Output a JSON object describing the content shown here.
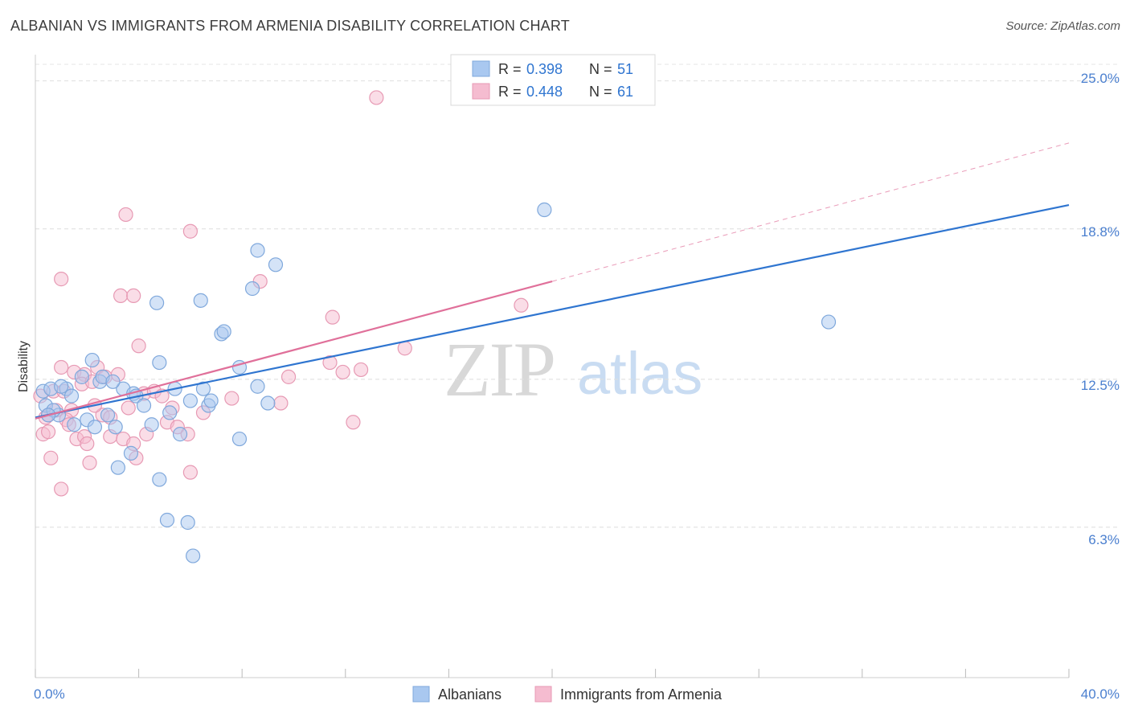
{
  "header": {
    "title": "ALBANIAN VS IMMIGRANTS FROM ARMENIA DISABILITY CORRELATION CHART",
    "source": "Source: ZipAtlas.com"
  },
  "watermark": {
    "zip": "ZIP",
    "atlas": "atlas"
  },
  "colors": {
    "blue_fill": "#a9c8f0",
    "blue_stroke": "#7fa8dc",
    "blue_line": "#2f75d0",
    "pink_fill": "#f5bcd0",
    "pink_stroke": "#e79ab4",
    "pink_line": "#e0709a",
    "axis_text": "#4a7fcf"
  },
  "legend": {
    "rows": [
      {
        "r_label": "R = ",
        "r_value": "0.398",
        "n_label": "N = ",
        "n_value": "51"
      },
      {
        "r_label": "R = ",
        "r_value": "0.448",
        "n_label": "N = ",
        "n_value": "61"
      }
    ]
  },
  "bottom_legend": {
    "items": [
      "Albanians",
      "Immigrants from Armenia"
    ]
  },
  "chart_data": {
    "type": "scatter",
    "title": "ALBANIAN VS IMMIGRANTS FROM ARMENIA DISABILITY CORRELATION CHART",
    "xlabel": "",
    "ylabel": "Disability",
    "xlim": [
      0,
      40
    ],
    "ylim": [
      0,
      26.1
    ],
    "x_tick_labels": [
      "0.0%",
      "40.0%"
    ],
    "y_ticks": [
      6.3,
      12.5,
      18.8,
      25.0
    ],
    "y_tick_labels": [
      "6.3%",
      "12.5%",
      "18.8%",
      "25.0%"
    ],
    "grid": true,
    "series": [
      {
        "name": "Albanians",
        "r": 0.398,
        "n": 51,
        "trend": {
          "x0": 0,
          "y0": 10.9,
          "x1": 40,
          "y1": 19.8
        },
        "points": [
          [
            0.3,
            12.0
          ],
          [
            0.6,
            12.1
          ],
          [
            0.4,
            11.4
          ],
          [
            0.9,
            11.0
          ],
          [
            1.2,
            12.1
          ],
          [
            1.4,
            11.8
          ],
          [
            1.0,
            12.2
          ],
          [
            0.7,
            11.2
          ],
          [
            1.8,
            12.6
          ],
          [
            2.2,
            13.3
          ],
          [
            2.5,
            12.4
          ],
          [
            2.6,
            12.6
          ],
          [
            2.0,
            10.8
          ],
          [
            2.8,
            11.0
          ],
          [
            3.1,
            10.5
          ],
          [
            3.4,
            12.1
          ],
          [
            3.8,
            11.9
          ],
          [
            3.2,
            8.8
          ],
          [
            3.7,
            9.4
          ],
          [
            3.9,
            11.8
          ],
          [
            4.2,
            11.4
          ],
          [
            4.5,
            10.6
          ],
          [
            4.8,
            13.2
          ],
          [
            4.7,
            15.7
          ],
          [
            5.2,
            11.1
          ],
          [
            4.8,
            8.3
          ],
          [
            5.4,
            12.1
          ],
          [
            5.6,
            10.2
          ],
          [
            5.1,
            6.6
          ],
          [
            6.0,
            11.6
          ],
          [
            5.9,
            6.5
          ],
          [
            6.4,
            15.8
          ],
          [
            6.1,
            5.1
          ],
          [
            6.7,
            11.4
          ],
          [
            6.8,
            11.6
          ],
          [
            6.5,
            12.1
          ],
          [
            7.2,
            14.4
          ],
          [
            7.3,
            14.5
          ],
          [
            7.9,
            13.0
          ],
          [
            8.6,
            17.9
          ],
          [
            7.9,
            10.0
          ],
          [
            8.4,
            16.3
          ],
          [
            8.6,
            12.2
          ],
          [
            9.3,
            17.3
          ],
          [
            9.0,
            11.5
          ],
          [
            19.7,
            19.6
          ],
          [
            30.7,
            14.9
          ],
          [
            2.3,
            10.5
          ],
          [
            1.5,
            10.6
          ],
          [
            0.5,
            11.0
          ],
          [
            3.0,
            12.4
          ]
        ]
      },
      {
        "name": "Immigrants from Armenia",
        "r": 0.448,
        "n": 61,
        "trend": {
          "x0": 0,
          "y0": 10.85,
          "x1": 20,
          "y1": 16.6
        },
        "trend_dashed": {
          "x0": 20,
          "y0": 16.6,
          "x1": 40,
          "y1": 22.4
        },
        "points": [
          [
            0.2,
            11.8
          ],
          [
            0.3,
            10.2
          ],
          [
            0.5,
            11.0
          ],
          [
            0.7,
            12.0
          ],
          [
            0.5,
            10.3
          ],
          [
            0.8,
            11.2
          ],
          [
            1.0,
            13.0
          ],
          [
            1.1,
            12.0
          ],
          [
            0.6,
            9.2
          ],
          [
            1.0,
            7.9
          ],
          [
            1.4,
            11.2
          ],
          [
            1.5,
            12.8
          ],
          [
            1.2,
            10.8
          ],
          [
            1.6,
            10.0
          ],
          [
            1.9,
            12.7
          ],
          [
            1.8,
            12.3
          ],
          [
            1.9,
            10.1
          ],
          [
            2.1,
            9.0
          ],
          [
            2.0,
            9.8
          ],
          [
            2.2,
            12.4
          ],
          [
            2.4,
            13.0
          ],
          [
            2.6,
            11.0
          ],
          [
            2.9,
            10.9
          ],
          [
            2.7,
            12.6
          ],
          [
            2.9,
            10.1
          ],
          [
            3.2,
            12.7
          ],
          [
            3.4,
            10.0
          ],
          [
            3.6,
            11.3
          ],
          [
            3.8,
            9.8
          ],
          [
            3.9,
            9.2
          ],
          [
            4.0,
            13.9
          ],
          [
            4.2,
            11.9
          ],
          [
            4.3,
            10.2
          ],
          [
            4.6,
            12.0
          ],
          [
            4.9,
            11.8
          ],
          [
            5.1,
            10.7
          ],
          [
            5.3,
            11.3
          ],
          [
            5.5,
            10.5
          ],
          [
            5.9,
            10.2
          ],
          [
            6.0,
            8.6
          ],
          [
            3.3,
            16.0
          ],
          [
            3.5,
            19.4
          ],
          [
            3.8,
            16.0
          ],
          [
            1.0,
            16.7
          ],
          [
            6.0,
            18.7
          ],
          [
            6.5,
            11.1
          ],
          [
            7.6,
            11.7
          ],
          [
            8.7,
            16.6
          ],
          [
            9.5,
            11.5
          ],
          [
            9.8,
            12.6
          ],
          [
            11.5,
            15.1
          ],
          [
            11.4,
            13.2
          ],
          [
            11.9,
            12.8
          ],
          [
            12.3,
            10.7
          ],
          [
            12.6,
            12.9
          ],
          [
            13.2,
            24.3
          ],
          [
            14.3,
            13.8
          ],
          [
            18.8,
            15.6
          ],
          [
            1.3,
            10.6
          ],
          [
            0.4,
            10.9
          ],
          [
            2.3,
            11.4
          ]
        ]
      }
    ]
  }
}
